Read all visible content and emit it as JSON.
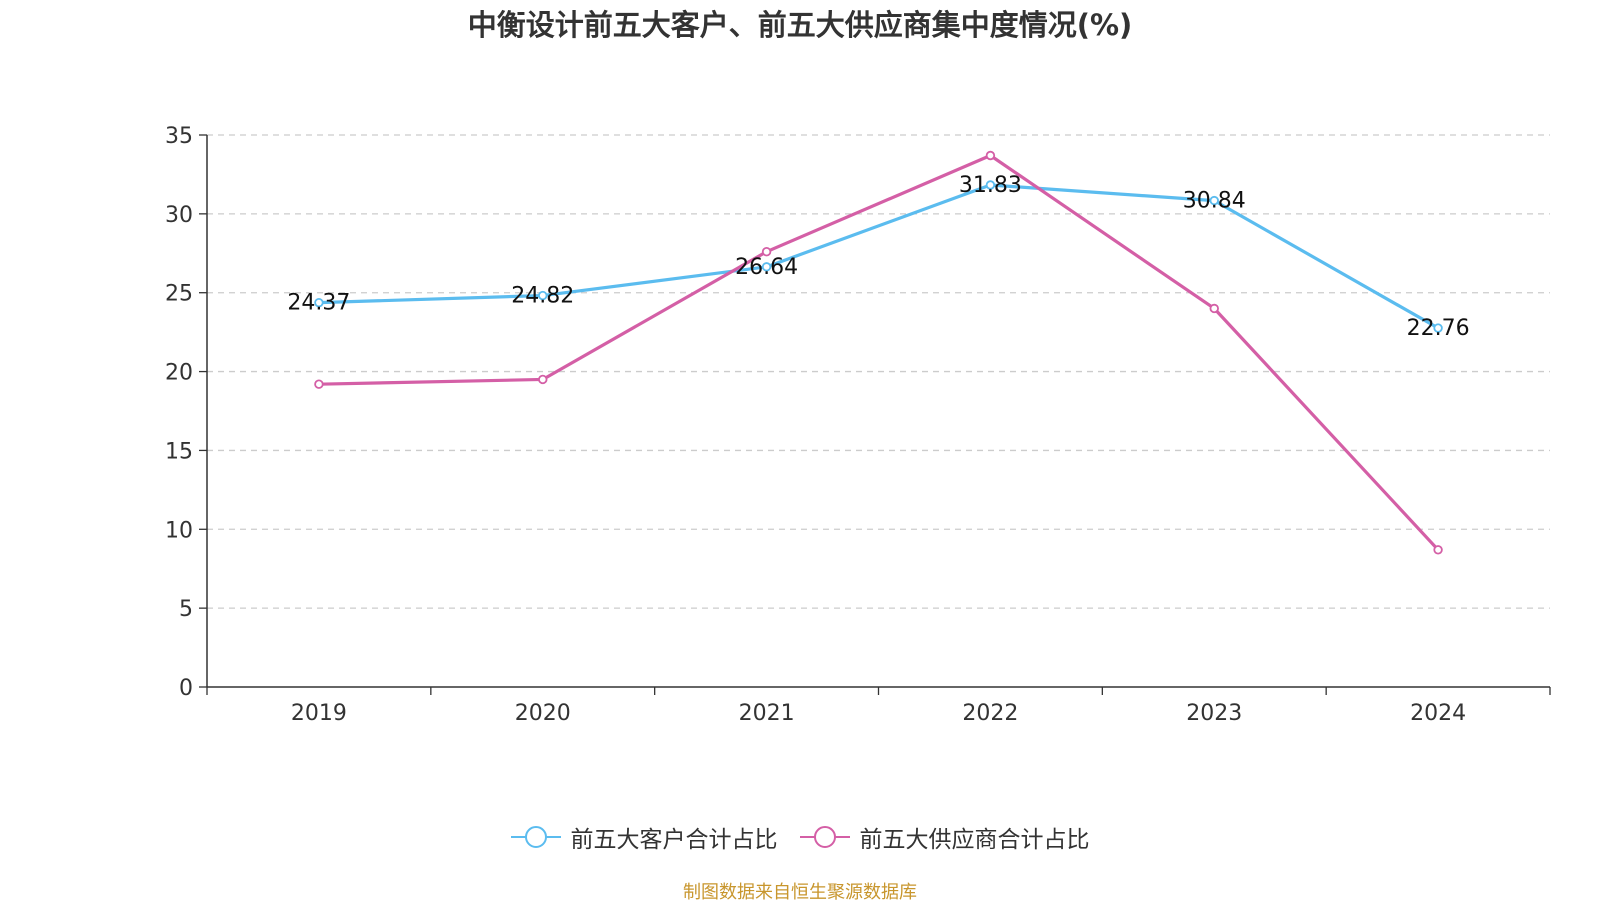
{
  "title": "中衡设计前五大客户、前五大供应商集中度情况(%)",
  "source": "制图数据来自恒生聚源数据库",
  "colors": {
    "source": "#c8962d",
    "axis": "#333333",
    "grid": "#cccccc"
  },
  "chart_data": {
    "type": "line",
    "title": "中衡设计前五大客户、前五大供应商集中度情况(%)",
    "categories": [
      "2019",
      "2020",
      "2021",
      "2022",
      "2023",
      "2024"
    ],
    "ylim": [
      0,
      35
    ],
    "yticks": [
      0,
      5,
      10,
      15,
      20,
      25,
      30,
      35
    ],
    "grid": true,
    "legend_position": "bottom-center",
    "series": [
      {
        "name": "前五大客户合计占比",
        "color": "#5bbcef",
        "values": [
          24.37,
          24.82,
          26.64,
          31.83,
          30.84,
          22.76
        ],
        "labels": [
          "24.37",
          "24.82",
          "26.64",
          "31.83",
          "30.84",
          "22.76"
        ],
        "show_labels": true
      },
      {
        "name": "前五大供应商合计占比",
        "color": "#d45fa6",
        "values": [
          19.2,
          19.5,
          27.6,
          33.7,
          24.0,
          8.7
        ],
        "show_labels": false
      }
    ]
  }
}
